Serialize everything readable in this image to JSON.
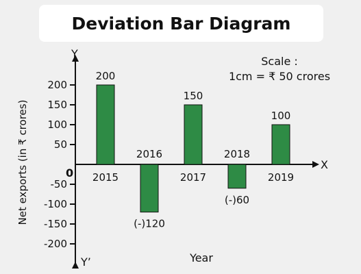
{
  "chart_data": {
    "type": "bar",
    "title": "Deviation Bar Diagram",
    "categories": [
      "2015",
      "2016",
      "2017",
      "2018",
      "2019"
    ],
    "values": [
      200,
      -120,
      150,
      -60,
      100
    ],
    "data_labels": [
      "200",
      "(-)120",
      "150",
      "(-)60",
      "100"
    ],
    "xlabel": "Year",
    "ylabel": "Net exports (in ₹ crores)",
    "ylim": [
      -200,
      200
    ],
    "yticks": [
      200,
      150,
      100,
      50,
      -50,
      -100,
      -150,
      -200
    ],
    "ytick_labels": [
      "200",
      "150",
      "100",
      "50",
      "-50",
      "-100",
      "-150",
      "-200"
    ],
    "origin_label": "0",
    "x_axis_label": "X",
    "y_axis_top_label": "Y",
    "y_axis_bottom_label": "Y’",
    "scale_title": "Scale :",
    "scale_value": "1cm = ₹ 50 crores",
    "grid": false,
    "legend": "none",
    "bar_color": "#2e8b45",
    "bar_edge_color": "#111111",
    "axis_color": "#111111",
    "background": "#f0f0f0"
  }
}
